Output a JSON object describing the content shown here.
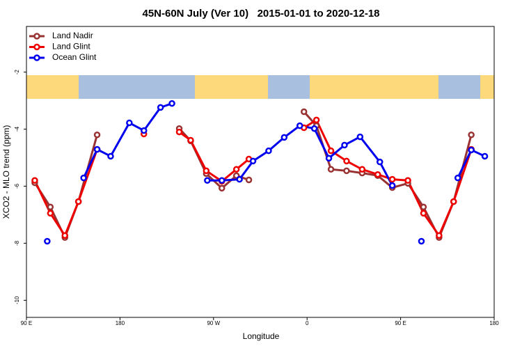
{
  "chart_data": {
    "type": "line",
    "title": "45N-60N July (Ver 10)   2015-01-01 to 2020-12-18",
    "xlabel": "Longitude",
    "ylabel": "XCO2 - MLO trend (ppm)",
    "xlim": [
      90,
      540
    ],
    "ylim": [
      -10.6,
      -0.4
    ],
    "xticks": [
      {
        "value": 90,
        "label": "90 E"
      },
      180,
      {
        "value": 270,
        "label": "90 W"
      },
      {
        "value": 360,
        "label": "0"
      },
      {
        "value": 450,
        "label": "90 E"
      },
      {
        "value": 540,
        "label": "180"
      }
    ],
    "yticks": [
      -10,
      -8,
      -6,
      -4,
      -2
    ],
    "legend": "upper-left",
    "grid": false,
    "series": [
      {
        "name": "Land Nadir",
        "color": "#993333",
        "x": [
          98,
          113,
          127,
          140,
          158,
          null,
          237,
          248,
          263,
          278,
          292,
          304,
          null,
          357,
          369,
          383,
          398,
          413,
          428,
          442,
          457,
          472,
          487,
          501,
          518
        ],
        "values": [
          -5.88,
          -6.73,
          -7.8,
          -6.54,
          -4.2,
          null,
          -3.98,
          -4.41,
          -5.56,
          -6.07,
          -5.63,
          -5.78,
          null,
          -3.39,
          -3.88,
          -5.41,
          -5.46,
          -5.54,
          -5.63,
          -6.05,
          -5.9,
          -6.73,
          -7.8,
          -6.54,
          -4.2
        ]
      },
      {
        "name": "Land Glint",
        "color": "#ee0000",
        "x": [
          98,
          113,
          127,
          140,
          158,
          null,
          203,
          null,
          237,
          248,
          263,
          278,
          292,
          304,
          null,
          357,
          369,
          383,
          398,
          413,
          428,
          442,
          457,
          472,
          487,
          501,
          518
        ],
        "values": [
          -5.8,
          -6.95,
          -7.73,
          -6.54,
          -4.71,
          null,
          -4.17,
          null,
          -4.1,
          -4.39,
          -5.46,
          -5.83,
          -5.41,
          -5.05,
          null,
          -3.95,
          -3.68,
          -4.76,
          -5.12,
          -5.41,
          -5.59,
          -5.76,
          -5.8,
          -6.95,
          -7.73,
          -6.54,
          -4.71
        ]
      },
      {
        "name": "Ocean Glint",
        "color": "#0000ee",
        "x": [
          110,
          null,
          145,
          158,
          171,
          189,
          203,
          219,
          230,
          null,
          264,
          278,
          295,
          308,
          323,
          338,
          353,
          367,
          381,
          396,
          411,
          430,
          442,
          null,
          470,
          null,
          505,
          518,
          531
        ],
        "values": [
          -7.93,
          null,
          -5.71,
          -4.71,
          -4.95,
          -3.78,
          -4.05,
          -3.24,
          -3.1,
          null,
          -5.8,
          -5.8,
          -5.76,
          -5.12,
          -4.76,
          -4.29,
          -3.88,
          -3.98,
          -5.02,
          -4.56,
          -4.27,
          -5.15,
          -5.98,
          null,
          -7.93,
          null,
          -5.71,
          -4.73,
          -4.95
        ]
      }
    ]
  }
}
